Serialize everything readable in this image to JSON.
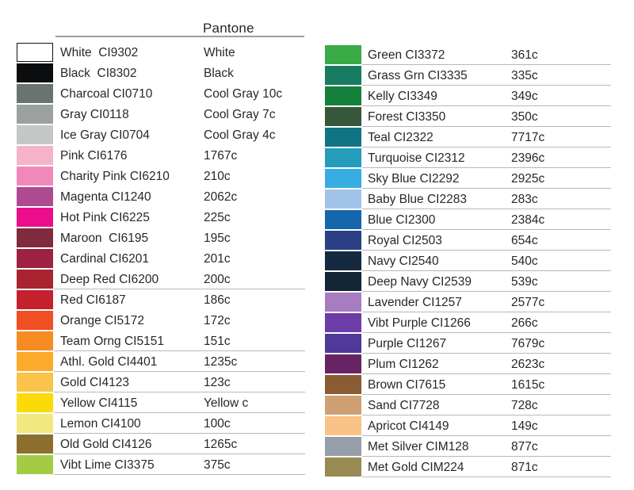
{
  "header": {
    "title": "Pantone"
  },
  "styles": {
    "divider_color": "#9b9da0",
    "row_line_color": "#b7b8ba",
    "text_color": "#26272a"
  },
  "columns": {
    "left": [
      {
        "label": "White  CI9302",
        "pantone": "White",
        "color": "#ffffff",
        "border": true,
        "underline": false
      },
      {
        "label": "Black  CI8302",
        "pantone": "Black",
        "color": "#0b0d0e",
        "border": false,
        "underline": false
      },
      {
        "label": "Charcoal CI0710",
        "pantone": "Cool Gray 10c",
        "color": "#69746e",
        "border": false,
        "underline": false
      },
      {
        "label": "Gray CI0118",
        "pantone": "Cool Gray 7c",
        "color": "#9ba19e",
        "border": false,
        "underline": false
      },
      {
        "label": "Ice Gray CI0704",
        "pantone": "Cool Gray 4c",
        "color": "#c4c7c5",
        "border": false,
        "underline": false
      },
      {
        "label": "Pink CI6176",
        "pantone": "1767c",
        "color": "#f4b3c9",
        "border": false,
        "underline": false
      },
      {
        "label": "Charity Pink CI6210",
        "pantone": "210c",
        "color": "#f089ba",
        "border": false,
        "underline": false
      },
      {
        "label": "Magenta CI1240",
        "pantone": "2062c",
        "color": "#ad4a92",
        "border": false,
        "underline": false
      },
      {
        "label": "Hot Pink CI6225",
        "pantone": "225c",
        "color": "#ec0d8d",
        "border": false,
        "underline": false
      },
      {
        "label": "Maroon  CI6195",
        "pantone": "195c",
        "color": "#7f2b3d",
        "border": false,
        "underline": false
      },
      {
        "label": "Cardinal CI6201",
        "pantone": "201c",
        "color": "#9c2143",
        "border": false,
        "underline": false
      },
      {
        "label": "Deep Red CI6200",
        "pantone": "200c",
        "color": "#a92330",
        "border": false,
        "underline": true
      },
      {
        "label": "Red CI6187",
        "pantone": "186c",
        "color": "#c4202e",
        "border": false,
        "underline": false
      },
      {
        "label": "Orange CI5172",
        "pantone": "172c",
        "color": "#f04e23",
        "border": false,
        "underline": false
      },
      {
        "label": "Team Orng CI5151",
        "pantone": "151c",
        "color": "#f68b21",
        "border": false,
        "underline": true
      },
      {
        "label": "Athl. Gold CI4401",
        "pantone": "1235c",
        "color": "#fbaa29",
        "border": false,
        "underline": true
      },
      {
        "label": "Gold CI4123",
        "pantone": "123c",
        "color": "#fbc34c",
        "border": false,
        "underline": true
      },
      {
        "label": "Yellow CI4115",
        "pantone": "Yellow c",
        "color": "#fada0a",
        "border": false,
        "underline": true
      },
      {
        "label": "Lemon CI4100",
        "pantone": "100c",
        "color": "#f2e97e",
        "border": false,
        "underline": true
      },
      {
        "label": "Old Gold CI4126",
        "pantone": "1265c",
        "color": "#8c6f2e",
        "border": false,
        "underline": true
      },
      {
        "label": "Vibt Lime CI3375",
        "pantone": "375c",
        "color": "#a4cb44",
        "border": false,
        "underline": true
      }
    ],
    "right": [
      {
        "label": "Green CI3372",
        "pantone": "361c",
        "color": "#3aab47",
        "border": false,
        "underline": true
      },
      {
        "label": "Grass Grn CI3335",
        "pantone": "335c",
        "color": "#177c62",
        "border": false,
        "underline": true
      },
      {
        "label": "Kelly CI3349",
        "pantone": "349c",
        "color": "#14803c",
        "border": false,
        "underline": true
      },
      {
        "label": "Forest CI3350",
        "pantone": "350c",
        "color": "#36573a",
        "border": false,
        "underline": true
      },
      {
        "label": "Teal CI2322",
        "pantone": "7717c",
        "color": "#107482",
        "border": false,
        "underline": true
      },
      {
        "label": "Turquoise CI2312",
        "pantone": "2396c",
        "color": "#239dbb",
        "border": false,
        "underline": true
      },
      {
        "label": "Sky Blue CI2292",
        "pantone": "2925c",
        "color": "#38ade1",
        "border": false,
        "underline": true
      },
      {
        "label": "Baby Blue CI2283",
        "pantone": "283c",
        "color": "#a2c3e8",
        "border": false,
        "underline": true
      },
      {
        "label": "Blue CI2300",
        "pantone": "2384c",
        "color": "#1566ad",
        "border": false,
        "underline": true
      },
      {
        "label": "Royal CI2503",
        "pantone": "654c",
        "color": "#2a3f85",
        "border": false,
        "underline": true
      },
      {
        "label": "Navy CI2540",
        "pantone": "540c",
        "color": "#152a40",
        "border": false,
        "underline": true
      },
      {
        "label": "Deep Navy CI2539",
        "pantone": "539c",
        "color": "#122535",
        "border": false,
        "underline": true
      },
      {
        "label": "Lavender CI1257",
        "pantone": "2577c",
        "color": "#a87cc1",
        "border": false,
        "underline": true
      },
      {
        "label": "Vibt Purple CI1266",
        "pantone": "266c",
        "color": "#6c3da6",
        "border": false,
        "underline": true
      },
      {
        "label": "Purple CI1267",
        "pantone": "7679c",
        "color": "#4f3a99",
        "border": false,
        "underline": true
      },
      {
        "label": "Plum CI1262",
        "pantone": "2623c",
        "color": "#672465",
        "border": false,
        "underline": true
      },
      {
        "label": "Brown CI7615",
        "pantone": "1615c",
        "color": "#8a5c33",
        "border": false,
        "underline": true
      },
      {
        "label": "Sand CI7728",
        "pantone": "728c",
        "color": "#cfa073",
        "border": false,
        "underline": true
      },
      {
        "label": "Apricot CI4149",
        "pantone": "149c",
        "color": "#fac286",
        "border": false,
        "underline": true
      },
      {
        "label": "Met Silver CIM128",
        "pantone": "877c",
        "color": "#969ea9",
        "border": false,
        "underline": true
      },
      {
        "label": "Met Gold CIM224",
        "pantone": "871c",
        "color": "#988a53",
        "border": false,
        "underline": true
      }
    ]
  }
}
